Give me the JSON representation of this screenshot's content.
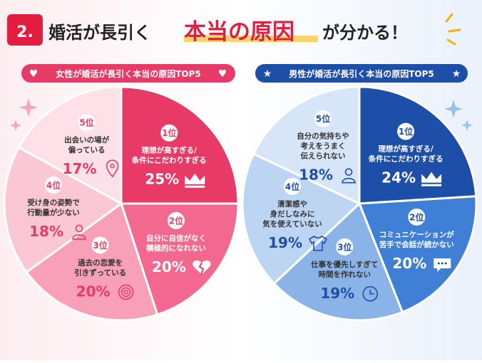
{
  "header": {
    "number": "2.",
    "title_before": "婚活が長引く",
    "title_highlight": "本当の原因",
    "title_after": "が分かる！"
  },
  "colors": {
    "pink_dark": "#e73a67",
    "pink_mid": "#f2688e",
    "pink_light": "#f7a0b8",
    "pink_pale": "#fbd0dc",
    "blue_dark": "#1d4fa8",
    "blue_mid": "#3f7fd6",
    "blue_light": "#8ab4e8",
    "blue_pale": "#c7dcf4",
    "title_red": "#e31d3f",
    "gold": "#f0b400"
  },
  "chart_data": [
    {
      "type": "pie",
      "title": "女性が婚活が長引く本当の原因TOP5",
      "slices": [
        {
          "rank": "1位",
          "label": "理想が高すぎる/\n条件にこだわりすぎる",
          "value": 25,
          "value_label": "25%",
          "color": "#e73a67",
          "icon": "crown-icon"
        },
        {
          "rank": "2位",
          "label": "自分に自信がなく\n積極的になれない",
          "value": 20,
          "value_label": "20%",
          "color": "#f2688e",
          "icon": "broken-heart-icon"
        },
        {
          "rank": "3位",
          "label": "過去の恋愛を\n引きずっている",
          "value": 20,
          "value_label": "20%",
          "color": "#f7a0b8",
          "icon": "rose-icon"
        },
        {
          "rank": "4位",
          "label": "受け身の姿勢で\n行動量が少ない",
          "value": 18,
          "value_label": "18%",
          "color": "#fbc7d5",
          "icon": "person-icon"
        },
        {
          "rank": "5位",
          "label": "出会いの場が\n偏っている",
          "value": 17,
          "value_label": "17%",
          "color": "#fde0e8",
          "icon": "map-pin-icon"
        }
      ]
    },
    {
      "type": "pie",
      "title": "男性が婚活が長引く本当の原因TOP5",
      "slices": [
        {
          "rank": "1位",
          "label": "理想が高すぎる/\n条件にこだわりすぎる",
          "value": 24,
          "value_label": "24%",
          "color": "#1d4fa8",
          "icon": "crown-icon"
        },
        {
          "rank": "2位",
          "label": "コミュニケーションが\n苦手で会話が続かない",
          "value": 20,
          "value_label": "20%",
          "color": "#3f7fd6",
          "icon": "speech-bubble-icon"
        },
        {
          "rank": "3位",
          "label": "仕事を優先しすぎて\n時間を作れない",
          "value": 19,
          "value_label": "19%",
          "color": "#8ab4e8",
          "icon": "clock-icon"
        },
        {
          "rank": "4位",
          "label": "清潔感や\n身だしなみに\n気を使えていない",
          "value": 19,
          "value_label": "19%",
          "color": "#bcd5f2",
          "icon": "shirt-icon"
        },
        {
          "rank": "5位",
          "label": "自分の気持ちや\n考えをうまく\n伝えられない",
          "value": 18,
          "value_label": "18%",
          "color": "#d6e5f7",
          "icon": "person-icon"
        }
      ]
    }
  ]
}
